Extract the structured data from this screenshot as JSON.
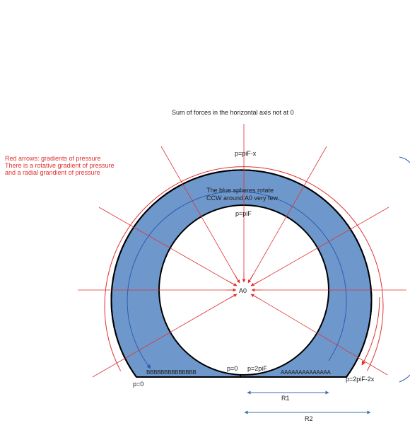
{
  "title": "Sum of forces in the horizontal axis not at 0",
  "legend": {
    "line1": "Red arrows: gradients of pressure",
    "line2": "There is a rotative gradient of pressure",
    "line3": "and a radial grandient of pressure"
  },
  "labels": {
    "top_outer": "p=piF-x",
    "rotation_note_1": "The blue spheres rotate",
    "rotation_note_2": "CCW around A0 very few",
    "top_inner": "p=piF",
    "center": "A0",
    "left_bottom": "p=0",
    "gap_left": "p=0",
    "gap_right": "p=2piF",
    "right_bottom": "p=2piF-2x",
    "r1": "R1",
    "r2": "R2"
  },
  "spheres": {
    "left_row": "BBBBBBBBBBBBBB",
    "right_row": "AAAAAAAAAAAAAA"
  },
  "colors": {
    "ring_fill": "#6e98cc",
    "ring_stroke": "#000000",
    "arrow_red": "#e03030",
    "arrow_blue": "#2a5db0",
    "dim_blue": "#3a6fb0"
  }
}
